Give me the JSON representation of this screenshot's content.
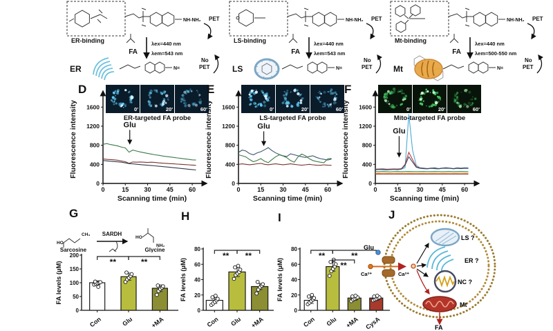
{
  "top_panels": [
    {
      "binding": "ER-binding",
      "fa": "FA",
      "pet": "PET",
      "ex": "λex=440 nm",
      "em": "λem=543 nm",
      "organelle": "ER",
      "no_pet_line1": "No",
      "no_pet_line2": "PET",
      "amine": "NH-NH₂",
      "hydrazone": "N="
    },
    {
      "binding": "LS-binding",
      "fa": "FA",
      "pet": "PET",
      "ex": "λex=440 nm",
      "em": "λem=543 nm",
      "organelle": "LS",
      "no_pet_line1": "No",
      "no_pet_line2": "PET",
      "amine": "NH-NH₂",
      "hydrazone": "N="
    },
    {
      "binding": "Mt-binding",
      "fa": "FA",
      "pet": "PET",
      "ex": "λex=440 nm",
      "em": "λem=500-550 nm",
      "organelle": "Mt",
      "no_pet_line1": "No",
      "no_pet_line2": "PET",
      "amine": "NH-NH₂",
      "hydrazone": "N="
    }
  ],
  "panels": {
    "D": {
      "letter": "D",
      "times": [
        "0'",
        "20'",
        "60'"
      ],
      "probe": "ER-targeted FA probe",
      "inset": {
        "color": "#5ec8f0",
        "bright": "#d9f2ff",
        "bg": "#0a1b2a",
        "alpha": [
          1,
          0.78,
          0.52
        ]
      }
    },
    "E": {
      "letter": "E",
      "times": [
        "0'",
        "20'",
        "60'"
      ],
      "probe": "LS-targeted FA probe",
      "inset": {
        "color": "#5ec8f0",
        "bright": "#d9f2ff",
        "bg": "#0a1b2a",
        "alpha": [
          1,
          0.9,
          0.75
        ]
      }
    },
    "F": {
      "letter": "F",
      "times": [
        "0'",
        "20'",
        "60'"
      ],
      "probe": "Mito-targeted FA probe",
      "inset": {
        "color": "#46d168",
        "bright": "#c8f5c9",
        "bg": "#08140a",
        "alpha": [
          0.8,
          1,
          0.55
        ]
      }
    },
    "G": {
      "letter": "G",
      "scheme": {
        "substrate": "Sarcosine",
        "enzyme": "SARDH",
        "product": "Glycine",
        "ho": "HO",
        "ch3": "CH₃",
        "nh2": "NH₂"
      }
    },
    "H": {
      "letter": "H"
    },
    "I": {
      "letter": "I"
    },
    "J": {
      "letter": "J",
      "labels": {
        "glu": "Glu",
        "ca_out": "Ca²⁺",
        "ca_in": "Ca²⁺",
        "ls": "LS ?",
        "er": "ER ?",
        "nc": "NC ?",
        "mt": "Mt",
        "fa": "FA"
      }
    }
  },
  "chart_data": [
    {
      "id": "D",
      "type": "line",
      "title": "ER-targeted FA probe",
      "xlabel": "Scanning time (min)",
      "ylabel": "Fluorescence intensity",
      "xlim": [
        0,
        66
      ],
      "ylim": [
        0,
        1850
      ],
      "xticks": [
        0,
        15,
        30,
        45,
        60
      ],
      "yticks": [
        0,
        400,
        800,
        1200,
        1600
      ],
      "annotation": {
        "text": "Glu",
        "x": 18,
        "text_y": 1180,
        "tip_y": 830
      },
      "x": [
        0,
        2.5,
        5,
        7.5,
        10,
        12.5,
        15,
        17.5,
        20,
        22.5,
        25,
        27.5,
        30,
        32.5,
        35,
        37.5,
        40,
        42.5,
        45,
        47.5,
        50,
        52.5,
        55,
        57.5,
        60,
        62.5
      ],
      "series": [
        {
          "name": "trace-1",
          "color": "#3e7a47",
          "y": [
            820,
            835,
            815,
            800,
            785,
            760,
            745,
            655,
            700,
            680,
            660,
            645,
            630,
            615,
            600,
            590,
            575,
            565,
            555,
            545,
            535,
            525,
            515,
            505,
            495,
            490
          ]
        },
        {
          "name": "trace-2",
          "color": "#7a3030",
          "y": [
            515,
            505,
            500,
            495,
            485,
            470,
            455,
            420,
            450,
            445,
            450,
            445,
            440,
            445,
            440,
            430,
            425,
            420,
            415,
            410,
            405,
            400,
            395,
            390,
            385,
            380
          ]
        },
        {
          "name": "trace-3",
          "color": "#2f3a45",
          "y": [
            480,
            472,
            465,
            458,
            452,
            445,
            430,
            415,
            410,
            402,
            395,
            388,
            382,
            374,
            368,
            360,
            352,
            345,
            338,
            330,
            322,
            314,
            306,
            298,
            290,
            282
          ]
        }
      ]
    },
    {
      "id": "E",
      "type": "line",
      "title": "LS-targeted FA probe",
      "xlabel": "Scanning time (min)",
      "ylabel": "Fluorescence intensity",
      "xlim": [
        0,
        66
      ],
      "ylim": [
        0,
        1850
      ],
      "xticks": [
        0,
        15,
        30,
        45,
        60
      ],
      "yticks": [
        0,
        400,
        800,
        1200,
        1600
      ],
      "annotation": {
        "text": "Glu",
        "x": 17,
        "text_y": 1150,
        "tip_y": 800
      },
      "x": [
        0,
        2.5,
        5,
        7.5,
        10,
        12.5,
        15,
        17.5,
        20,
        22.5,
        25,
        27.5,
        30,
        32.5,
        35,
        37.5,
        40,
        42.5,
        45,
        47.5,
        50,
        52.5,
        55,
        57.5,
        60,
        62.5
      ],
      "series": [
        {
          "name": "trace-1",
          "color": "#3a566e",
          "y": [
            650,
            700,
            680,
            625,
            600,
            640,
            665,
            705,
            750,
            690,
            640,
            605,
            580,
            565,
            620,
            600,
            580,
            560,
            545,
            565,
            580,
            545,
            520,
            505,
            490,
            510
          ]
        },
        {
          "name": "trace-2",
          "color": "#3e7a47",
          "y": [
            600,
            580,
            555,
            500,
            455,
            480,
            520,
            465,
            435,
            500,
            560,
            600,
            575,
            540,
            480,
            445,
            555,
            615,
            580,
            520,
            480,
            460,
            445,
            435,
            515,
            525
          ]
        },
        {
          "name": "trace-3",
          "color": "#7a3030",
          "y": [
            400,
            410,
            400,
            392,
            400,
            412,
            420,
            400,
            392,
            402,
            410,
            400,
            392,
            400,
            410,
            400,
            390,
            382,
            390,
            400,
            390,
            382,
            380,
            390,
            382,
            380
          ]
        }
      ]
    },
    {
      "id": "F",
      "type": "line",
      "title": "Mito-targeted FA probe",
      "xlabel": "Scanning time (min)",
      "ylabel": "Fluorescence intensity",
      "xlim": [
        0,
        66
      ],
      "ylim": [
        0,
        1850
      ],
      "xticks": [
        0,
        15,
        30,
        45,
        60
      ],
      "yticks": [
        0,
        400,
        800,
        1200,
        1600
      ],
      "annotation": {
        "text": "Glu",
        "x": 16,
        "text_y": 1050,
        "tip_y": 560
      },
      "x": [
        0,
        2.5,
        5,
        7.5,
        10,
        12.5,
        15,
        17.5,
        20,
        22.5,
        25,
        27.5,
        30,
        32.5,
        35,
        37.5,
        40,
        42.5,
        45,
        47.5,
        50,
        52.5,
        55,
        57.5,
        60,
        62.5
      ],
      "series": [
        {
          "name": "trace-1",
          "color": "#4fa8d8",
          "y": [
            300,
            302,
            308,
            300,
            296,
            300,
            305,
            300,
            330,
            1450,
            700,
            380,
            330,
            322,
            312,
            322,
            332,
            312,
            322,
            332,
            322,
            312,
            330,
            322,
            330,
            328
          ]
        },
        {
          "name": "trace-2",
          "color": "#c23b2e",
          "y": [
            298,
            304,
            300,
            296,
            300,
            305,
            300,
            310,
            400,
            650,
            500,
            350,
            322,
            316,
            310,
            320,
            316,
            310,
            320,
            325,
            320,
            310,
            320,
            316,
            320,
            318
          ]
        },
        {
          "name": "trace-3",
          "color": "#2e4a6b",
          "y": [
            288,
            294,
            290,
            286,
            290,
            295,
            290,
            300,
            380,
            560,
            450,
            340,
            316,
            310,
            306,
            316,
            310,
            306,
            316,
            320,
            316,
            306,
            316,
            310,
            316,
            314
          ]
        },
        {
          "name": "trace-4",
          "color": "#3f8f5a",
          "y": [
            252,
            248,
            252,
            250,
            246,
            250,
            252,
            248,
            250,
            252,
            250,
            248,
            250,
            252,
            248,
            250,
            252,
            250,
            248,
            250,
            252,
            248,
            250,
            252,
            250,
            248
          ]
        },
        {
          "name": "trace-5",
          "color": "#e2902a",
          "y": [
            215,
            217,
            214,
            216,
            215,
            214,
            216,
            215,
            214,
            216,
            215,
            214,
            216,
            215,
            214,
            216,
            215,
            214,
            216,
            215,
            214,
            216,
            215,
            214,
            216,
            215
          ]
        },
        {
          "name": "trace-6",
          "color": "#8e3b2f",
          "y": [
            196,
            198,
            195,
            197,
            196,
            195,
            197,
            196,
            195,
            197,
            196,
            195,
            197,
            196,
            195,
            197,
            196,
            195,
            197,
            196,
            195,
            197,
            196,
            195,
            197,
            196
          ]
        }
      ]
    },
    {
      "id": "G",
      "type": "bar",
      "ylabel": "FA levels (µM)",
      "ylim": [
        0,
        200
      ],
      "yticks": [
        0,
        50,
        100,
        150,
        200
      ],
      "categories": [
        "Con",
        "Glu",
        "+MA"
      ],
      "values": [
        100,
        122,
        80
      ],
      "errors": [
        7,
        13,
        12
      ],
      "bar_colors": [
        "#ffffff",
        "#b8bd3e",
        "#8b8e33"
      ],
      "points": [
        [
          93,
          96,
          98,
          100,
          102,
          104,
          85
        ],
        [
          103,
          112,
          118,
          124,
          131,
          137
        ],
        [
          56,
          70,
          77,
          82,
          87,
          90
        ]
      ],
      "sig": [
        {
          "a": 0,
          "b": 1,
          "label": "**",
          "level": 2
        },
        {
          "a": 1,
          "b": 2,
          "label": "**",
          "level": 2
        }
      ]
    },
    {
      "id": "H",
      "type": "bar",
      "ylabel": "FA levels (µM)",
      "ylim": [
        0,
        80
      ],
      "yticks": [
        0,
        20,
        40,
        60,
        80
      ],
      "categories": [
        "Con",
        "Glu",
        "+MA"
      ],
      "values": [
        13,
        50,
        31
      ],
      "errors": [
        4,
        6,
        4
      ],
      "bar_colors": [
        "#ffffff",
        "#b8bd3e",
        "#8b8e33"
      ],
      "points": [
        [
          7,
          9,
          11,
          13,
          15,
          17,
          19
        ],
        [
          41,
          46,
          48,
          50,
          53,
          56,
          58
        ],
        [
          22,
          27,
          30,
          32,
          34,
          37
        ]
      ],
      "sig": [
        {
          "a": 0,
          "b": 1,
          "label": "**",
          "level": 2
        },
        {
          "a": 1,
          "b": 2,
          "label": "**",
          "level": 2
        }
      ]
    },
    {
      "id": "I",
      "type": "bar",
      "ylabel": "FA levels (µM)",
      "ylim": [
        0,
        80
      ],
      "yticks": [
        0,
        20,
        40,
        60,
        80
      ],
      "categories": [
        "Con",
        "Glu",
        "+MA",
        "CysA"
      ],
      "values": [
        13,
        57,
        16,
        16
      ],
      "errors": [
        4,
        6,
        3,
        3
      ],
      "bar_colors": [
        "#ffffff",
        "#b8bd3e",
        "#8b8e33",
        "#a83a2c"
      ],
      "points": [
        [
          8,
          10,
          12,
          14,
          16,
          18,
          20
        ],
        [
          45,
          51,
          54,
          57,
          60,
          63,
          66
        ],
        [
          12,
          14,
          15,
          16,
          17,
          18,
          19
        ],
        [
          13,
          14,
          15,
          16,
          17,
          18,
          19
        ]
      ],
      "sig": [
        {
          "a": 0,
          "b": 1,
          "label": "**",
          "level": 2
        },
        {
          "a": 1,
          "b": 2,
          "label": "**",
          "level": 1
        },
        {
          "a": 1,
          "b": 3,
          "label": "**",
          "level": 2
        }
      ]
    }
  ]
}
